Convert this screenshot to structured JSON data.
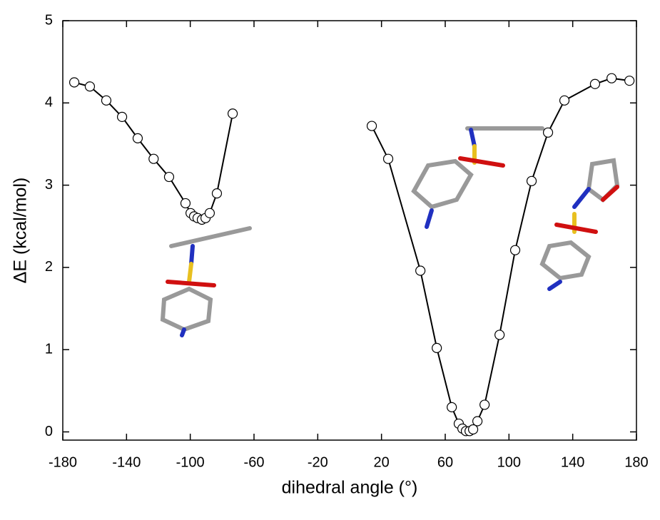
{
  "chart_data": {
    "type": "line",
    "x_label": "dihedral angle (°)",
    "y_label": "ΔE (kcal/mol)",
    "x": [
      -172.8,
      -163,
      -152.7,
      -142.8,
      -133,
      -123,
      -113.3,
      -103,
      -99.8,
      -97.6,
      -95.4,
      -92.7,
      -90.4,
      -87.8,
      -83.3,
      -73.4,
      null,
      13.9,
      24.2,
      44.4,
      54.7,
      64.1,
      68.5,
      70.8,
      73,
      75.3,
      77.5,
      80.2,
      84.7,
      94.1,
      103.9,
      114.2,
      124.5,
      134.8,
      154,
      164.4,
      175.6
    ],
    "series": [
      {
        "color": "#000000",
        "values": [
          4.25,
          4.2,
          4.03,
          3.83,
          3.57,
          3.32,
          3.1,
          2.78,
          2.66,
          2.62,
          2.6,
          2.58,
          2.6,
          2.66,
          2.9,
          3.87,
          null,
          3.72,
          3.32,
          1.96,
          1.02,
          0.3,
          0.1,
          0.04,
          0.01,
          0.01,
          0.03,
          0.13,
          0.33,
          1.18,
          2.21,
          3.05,
          3.64,
          4.03,
          4.23,
          4.3,
          4.27
        ]
      }
    ],
    "xlim": [
      -180,
      180
    ],
    "xticks": [
      -180,
      -140,
      -100,
      -60,
      -20,
      20,
      60,
      100,
      140,
      180
    ],
    "ylim": [
      -0.1,
      5
    ],
    "yticks": [
      0,
      1,
      2,
      3,
      4,
      5
    ]
  }
}
